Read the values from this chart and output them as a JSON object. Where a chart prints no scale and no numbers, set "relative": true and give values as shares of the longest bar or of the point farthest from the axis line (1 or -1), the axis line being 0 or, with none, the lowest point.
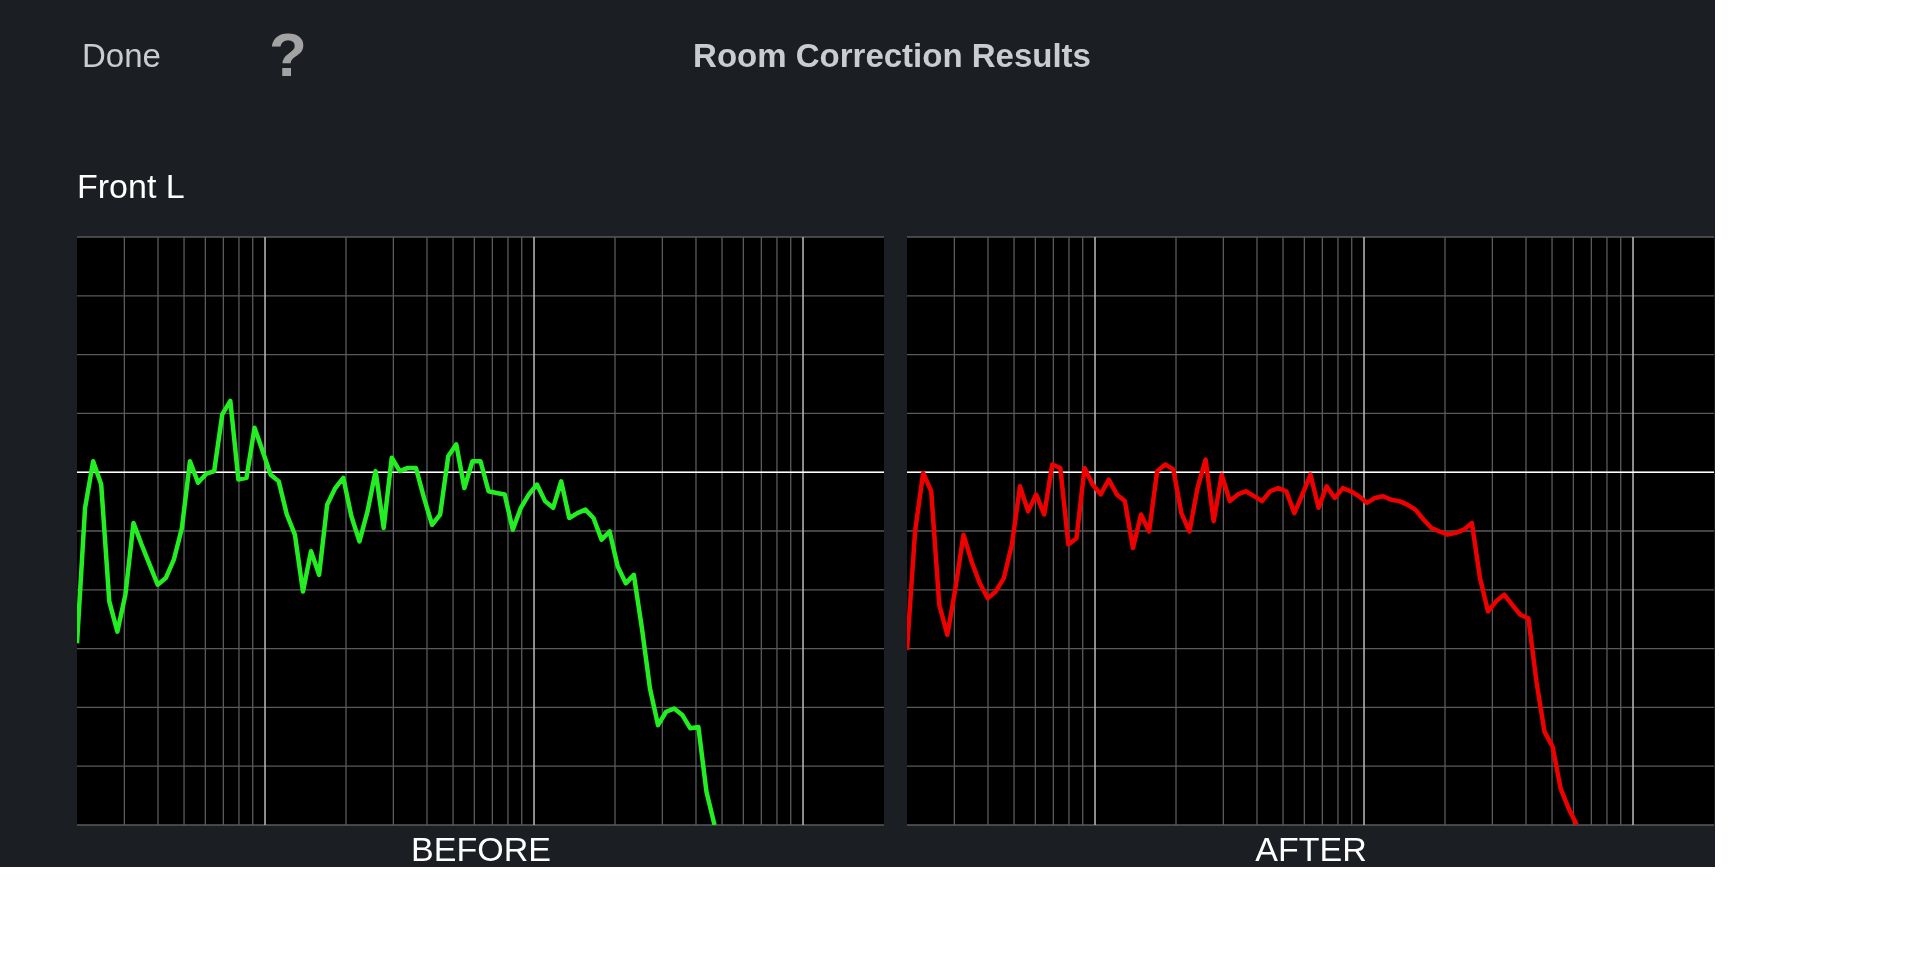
{
  "chart_data": [
    {
      "type": "line",
      "title": "Room Correction Results",
      "subtitle": "Front L",
      "xlabel": "BEFORE",
      "annotations": [
        "Done",
        "?"
      ],
      "relative": true,
      "grid": true,
      "categories": [
        null,
        null,
        null,
        null,
        null,
        null,
        null,
        null,
        null,
        null,
        null,
        null,
        null,
        null,
        null,
        null,
        null,
        null,
        null,
        null,
        null,
        null,
        null,
        null,
        null,
        null,
        null,
        null,
        null,
        null,
        null,
        null,
        null,
        null,
        null,
        null,
        null,
        null,
        null,
        null,
        null,
        null,
        null,
        null,
        null,
        null,
        null,
        null,
        null,
        null,
        null,
        null,
        null,
        null,
        null,
        null,
        null,
        null,
        null,
        null,
        null,
        null,
        null,
        null,
        null,
        null,
        null,
        null,
        null,
        null,
        null,
        null,
        null,
        null,
        null,
        null,
        null,
        null,
        null,
        null,
        null,
        null,
        null,
        null,
        null,
        null,
        null,
        null,
        null,
        null,
        null,
        null,
        null,
        null,
        null,
        null,
        null,
        null,
        null,
        null,
        null
      ],
      "series": [
        {
          "color": "#22ee22",
          "values": [
            -0.485,
            -0.101,
            0.031,
            -0.035,
            -0.366,
            -0.452,
            -0.347,
            -0.144,
            -0.205,
            -0.262,
            -0.319,
            -0.3,
            -0.248,
            -0.158,
            0.031,
            -0.03,
            -0.005,
            0.003,
            0.164,
            0.202,
            -0.021,
            -0.016,
            0.126,
            0.06,
            -0.007,
            -0.026,
            -0.12,
            -0.177,
            -0.338,
            -0.224,
            -0.291,
            -0.092,
            -0.045,
            -0.016,
            -0.125,
            -0.196,
            -0.111,
            0.003,
            -0.158,
            0.041,
            0.003,
            0.012,
            0.012,
            -0.073,
            -0.149,
            -0.12,
            0.045,
            0.079,
            -0.045,
            0.031,
            0.031,
            -0.054,
            -0.059,
            -0.063,
            -0.163,
            -0.101,
            -0.063,
            -0.035,
            -0.082,
            -0.101,
            -0.026,
            -0.13,
            -0.116,
            -0.106,
            -0.13,
            -0.191,
            -0.168,
            -0.267,
            -0.315,
            -0.291,
            -0.442,
            -0.613,
            -0.717,
            -0.679,
            -0.67,
            -0.688,
            -0.726,
            -0.722,
            -0.906,
            -1.0,
            null,
            null,
            null,
            null,
            null,
            null,
            null,
            null,
            null,
            null,
            null,
            null,
            null,
            null,
            null,
            null,
            null,
            null,
            null,
            null,
            null
          ]
        }
      ],
      "ref_lines": [
        {
          "axis": "y",
          "value": 0,
          "color": "#ffffff"
        }
      ]
    },
    {
      "type": "line",
      "xlabel": "AFTER",
      "relative": true,
      "grid": true,
      "categories": [
        null,
        null,
        null,
        null,
        null,
        null,
        null,
        null,
        null,
        null,
        null,
        null,
        null,
        null,
        null,
        null,
        null,
        null,
        null,
        null,
        null,
        null,
        null,
        null,
        null,
        null,
        null,
        null,
        null,
        null,
        null,
        null,
        null,
        null,
        null,
        null,
        null,
        null,
        null,
        null,
        null,
        null,
        null,
        null,
        null,
        null,
        null,
        null,
        null,
        null,
        null,
        null,
        null,
        null,
        null,
        null,
        null,
        null,
        null,
        null,
        null,
        null,
        null,
        null,
        null,
        null,
        null,
        null,
        null,
        null,
        null,
        null,
        null,
        null,
        null,
        null,
        null,
        null,
        null,
        null,
        null,
        null,
        null,
        null,
        null,
        null,
        null,
        null,
        null,
        null,
        null,
        null,
        null,
        null,
        null,
        null,
        null,
        null,
        null,
        null,
        null
      ],
      "series": [
        {
          "color": "#ee0000",
          "values": [
            -0.504,
            -0.168,
            -0.002,
            -0.054,
            -0.376,
            -0.461,
            -0.329,
            -0.177,
            -0.253,
            -0.314,
            -0.357,
            -0.338,
            -0.3,
            -0.205,
            -0.04,
            -0.111,
            -0.063,
            -0.12,
            0.022,
            0.012,
            -0.205,
            -0.187,
            0.012,
            -0.035,
            -0.063,
            -0.021,
            -0.063,
            -0.082,
            -0.215,
            -0.12,
            -0.168,
            0.003,
            0.022,
            0.008,
            -0.116,
            -0.168,
            -0.045,
            0.036,
            -0.139,
            -0.007,
            -0.082,
            -0.063,
            -0.054,
            -0.068,
            -0.082,
            -0.054,
            -0.045,
            -0.054,
            -0.116,
            -0.063,
            -0.007,
            -0.101,
            -0.04,
            -0.073,
            -0.045,
            -0.054,
            -0.068,
            -0.087,
            -0.073,
            -0.068,
            -0.078,
            -0.082,
            -0.092,
            -0.106,
            -0.134,
            -0.158,
            -0.168,
            -0.177,
            -0.172,
            -0.163,
            -0.144,
            -0.3,
            -0.395,
            -0.366,
            -0.347,
            -0.376,
            -0.404,
            -0.414,
            -0.594,
            -0.736,
            -0.778,
            -0.897,
            -0.954,
            -1.0,
            null,
            null,
            null,
            null,
            null,
            null,
            null,
            null,
            null,
            null,
            null,
            null,
            null,
            null,
            null,
            null,
            null
          ]
        }
      ],
      "ref_lines": [
        {
          "axis": "y",
          "value": 0,
          "color": "#ffffff"
        }
      ]
    }
  ]
}
